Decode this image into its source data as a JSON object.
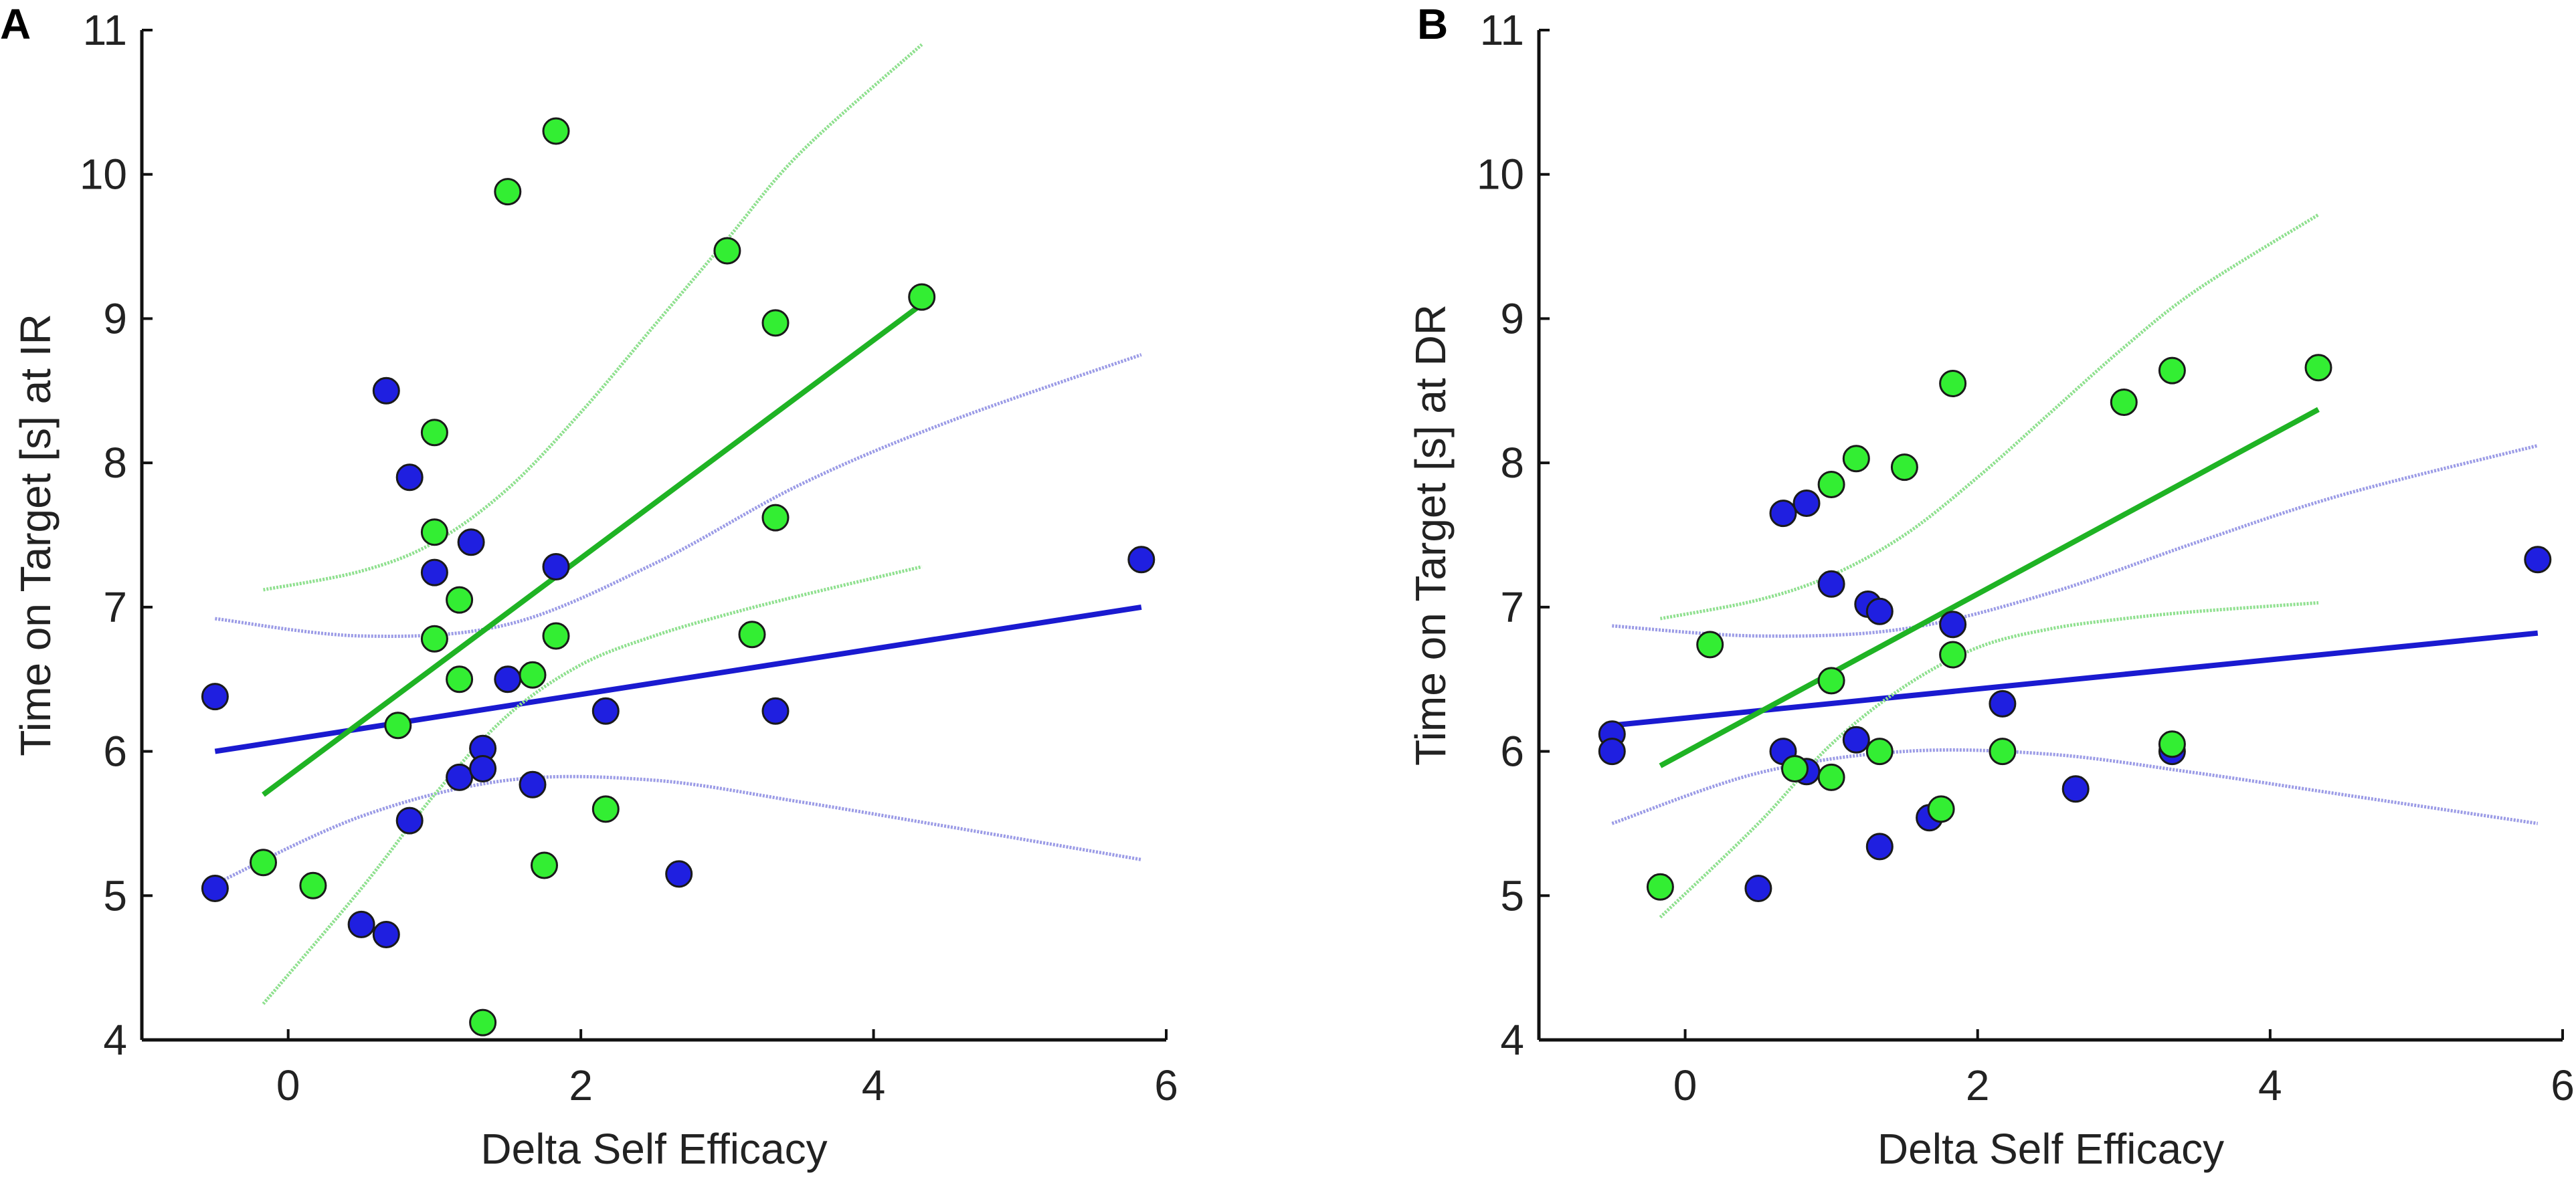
{
  "colors": {
    "green": "#1fb324",
    "green_point": "#33ee33",
    "green_ci": "#8fe08f",
    "blue": "#1a1ad0",
    "blue_point": "#1f1fe0",
    "blue_ci": "#9b9be6",
    "axis": "#111111"
  },
  "chart_data": [
    {
      "type": "scatter",
      "panel_label": "A",
      "title": "",
      "xlabel": "Delta Self Efficacy",
      "ylabel": "Time on Target [s] at IR",
      "xlim": [
        -1,
        6
      ],
      "ylim": [
        4,
        11
      ],
      "xticks": [
        0,
        2,
        4,
        6
      ],
      "yticks": [
        4,
        5,
        6,
        7,
        8,
        9,
        10,
        11
      ],
      "series": [
        {
          "name": "blue",
          "points": [
            [
              -0.5,
              6.38
            ],
            [
              -0.5,
              5.05
            ],
            [
              0.5,
              4.8
            ],
            [
              0.67,
              4.73
            ],
            [
              0.67,
              8.5
            ],
            [
              0.83,
              7.9
            ],
            [
              0.83,
              5.52
            ],
            [
              1.0,
              7.24
            ],
            [
              1.17,
              5.82
            ],
            [
              1.25,
              7.45
            ],
            [
              1.33,
              6.02
            ],
            [
              1.33,
              5.88
            ],
            [
              1.5,
              6.5
            ],
            [
              1.67,
              5.77
            ],
            [
              1.83,
              7.28
            ],
            [
              2.17,
              6.28
            ],
            [
              2.67,
              5.15
            ],
            [
              3.33,
              6.28
            ],
            [
              5.83,
              7.33
            ]
          ],
          "fit": [
            [
              -0.5,
              6.0
            ],
            [
              5.83,
              7.0
            ]
          ],
          "ci_upper": [
            [
              -0.5,
              6.92
            ],
            [
              0.5,
              6.8
            ],
            [
              1.5,
              6.88
            ],
            [
              2.5,
              7.3
            ],
            [
              3.5,
              7.85
            ],
            [
              4.5,
              8.28
            ],
            [
              5.83,
              8.75
            ]
          ],
          "ci_lower": [
            [
              -0.5,
              5.08
            ],
            [
              0.5,
              5.55
            ],
            [
              1.5,
              5.8
            ],
            [
              2.5,
              5.8
            ],
            [
              3.5,
              5.65
            ],
            [
              4.5,
              5.48
            ],
            [
              5.83,
              5.25
            ]
          ]
        },
        {
          "name": "green",
          "points": [
            [
              -0.17,
              5.23
            ],
            [
              0.17,
              5.07
            ],
            [
              0.75,
              6.18
            ],
            [
              1.0,
              8.21
            ],
            [
              1.0,
              7.52
            ],
            [
              1.0,
              6.78
            ],
            [
              1.17,
              7.05
            ],
            [
              1.17,
              6.5
            ],
            [
              1.33,
              4.12
            ],
            [
              1.5,
              9.88
            ],
            [
              1.67,
              6.53
            ],
            [
              1.75,
              5.21
            ],
            [
              1.83,
              10.3
            ],
            [
              1.83,
              6.8
            ],
            [
              2.17,
              5.6
            ],
            [
              3.0,
              9.47
            ],
            [
              3.17,
              6.81
            ],
            [
              3.33,
              8.97
            ],
            [
              3.33,
              7.62
            ],
            [
              4.33,
              9.15
            ]
          ],
          "fit": [
            [
              -0.17,
              5.7
            ],
            [
              4.33,
              9.1
            ]
          ],
          "ci_upper": [
            [
              -0.17,
              7.12
            ],
            [
              0.5,
              7.25
            ],
            [
              1.0,
              7.45
            ],
            [
              1.5,
              7.82
            ],
            [
              2.0,
              8.35
            ],
            [
              2.5,
              8.95
            ],
            [
              3.0,
              9.55
            ],
            [
              3.5,
              10.15
            ],
            [
              4.33,
              10.9
            ]
          ],
          "ci_lower": [
            [
              -0.17,
              4.25
            ],
            [
              0.5,
              5.05
            ],
            [
              1.0,
              5.7
            ],
            [
              1.5,
              6.25
            ],
            [
              2.0,
              6.6
            ],
            [
              2.5,
              6.8
            ],
            [
              3.0,
              6.95
            ],
            [
              3.5,
              7.08
            ],
            [
              4.33,
              7.28
            ]
          ]
        }
      ]
    },
    {
      "type": "scatter",
      "panel_label": "B",
      "title": "",
      "xlabel": "Delta Self Efficacy",
      "ylabel": "Time on Target [s] at DR",
      "xlim": [
        -1,
        6
      ],
      "ylim": [
        4,
        11
      ],
      "xticks": [
        0,
        2,
        4,
        6
      ],
      "yticks": [
        4,
        5,
        6,
        7,
        8,
        9,
        10,
        11
      ],
      "series": [
        {
          "name": "blue",
          "points": [
            [
              -0.5,
              6.12
            ],
            [
              -0.5,
              6.0
            ],
            [
              0.5,
              5.05
            ],
            [
              0.67,
              7.65
            ],
            [
              0.67,
              6.0
            ],
            [
              0.83,
              7.72
            ],
            [
              0.83,
              5.86
            ],
            [
              1.0,
              7.16
            ],
            [
              1.17,
              6.08
            ],
            [
              1.25,
              7.02
            ],
            [
              1.33,
              6.97
            ],
            [
              1.33,
              5.34
            ],
            [
              1.67,
              5.54
            ],
            [
              1.83,
              6.88
            ],
            [
              2.17,
              6.33
            ],
            [
              2.67,
              5.74
            ],
            [
              3.33,
              6.0
            ],
            [
              5.83,
              7.33
            ]
          ],
          "fit": [
            [
              -0.5,
              6.18
            ],
            [
              5.83,
              6.82
            ]
          ],
          "ci_upper": [
            [
              -0.5,
              6.87
            ],
            [
              0.5,
              6.8
            ],
            [
              1.5,
              6.85
            ],
            [
              2.5,
              7.1
            ],
            [
              3.5,
              7.45
            ],
            [
              4.5,
              7.78
            ],
            [
              5.83,
              8.12
            ]
          ],
          "ci_lower": [
            [
              -0.5,
              5.5
            ],
            [
              0.5,
              5.85
            ],
            [
              1.5,
              6.0
            ],
            [
              2.5,
              5.98
            ],
            [
              3.5,
              5.85
            ],
            [
              4.5,
              5.7
            ],
            [
              5.83,
              5.5
            ]
          ]
        },
        {
          "name": "green",
          "points": [
            [
              -0.17,
              5.06
            ],
            [
              0.17,
              6.74
            ],
            [
              0.75,
              5.88
            ],
            [
              1.0,
              7.85
            ],
            [
              1.0,
              6.49
            ],
            [
              1.0,
              5.82
            ],
            [
              1.17,
              8.03
            ],
            [
              1.33,
              6.0
            ],
            [
              1.5,
              7.97
            ],
            [
              1.75,
              5.6
            ],
            [
              1.83,
              8.55
            ],
            [
              1.83,
              6.67
            ],
            [
              2.17,
              6.0
            ],
            [
              3.0,
              8.42
            ],
            [
              3.33,
              8.64
            ],
            [
              3.33,
              6.05
            ],
            [
              4.33,
              8.66
            ]
          ],
          "fit": [
            [
              -0.17,
              5.9
            ],
            [
              4.33,
              8.37
            ]
          ],
          "ci_upper": [
            [
              -0.17,
              6.92
            ],
            [
              0.5,
              7.05
            ],
            [
              1.0,
              7.22
            ],
            [
              1.5,
              7.5
            ],
            [
              2.0,
              7.9
            ],
            [
              2.5,
              8.35
            ],
            [
              3.0,
              8.8
            ],
            [
              3.5,
              9.2
            ],
            [
              4.33,
              9.72
            ]
          ],
          "ci_lower": [
            [
              -0.17,
              4.85
            ],
            [
              0.5,
              5.5
            ],
            [
              1.0,
              6.05
            ],
            [
              1.5,
              6.45
            ],
            [
              2.0,
              6.72
            ],
            [
              2.5,
              6.85
            ],
            [
              3.0,
              6.92
            ],
            [
              3.5,
              6.97
            ],
            [
              4.33,
              7.03
            ]
          ]
        }
      ]
    }
  ]
}
